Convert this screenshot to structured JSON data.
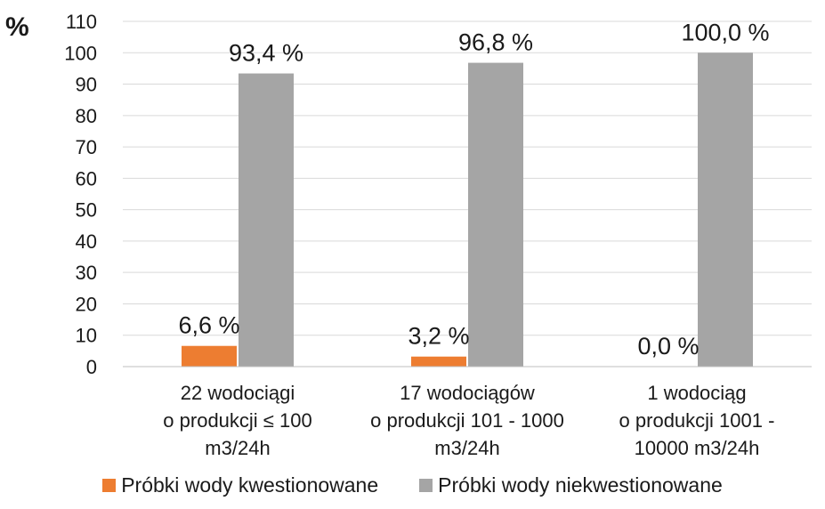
{
  "chart_data": {
    "type": "bar",
    "unit_label": "%",
    "categories": [
      [
        "22 wodociągi",
        "o produkcji  ≤ 100",
        "m3/24h"
      ],
      [
        "17 wodociągów",
        "o produkcji 101 - 1000",
        "m3/24h"
      ],
      [
        "1 wodociąg",
        "o produkcji 1001 -",
        "10000 m3/24h"
      ]
    ],
    "series": [
      {
        "name": "Próbki wody kwestionowane",
        "color": "#ED7D31",
        "values": [
          6.6,
          3.2,
          0.0
        ],
        "labels": [
          "6,6 %",
          "3,2 %",
          "0,0 %"
        ]
      },
      {
        "name": "Próbki wody niekwestionowane",
        "color": "#A5A5A5",
        "values": [
          93.4,
          96.8,
          100.0
        ],
        "labels": [
          "93,4 %",
          "96,8 %",
          "100,0 %"
        ]
      }
    ],
    "ylim": [
      0,
      110
    ],
    "yticks": [
      0,
      10,
      20,
      30,
      40,
      50,
      60,
      70,
      80,
      90,
      100,
      110
    ],
    "grid": true,
    "legend_position": "bottom"
  }
}
